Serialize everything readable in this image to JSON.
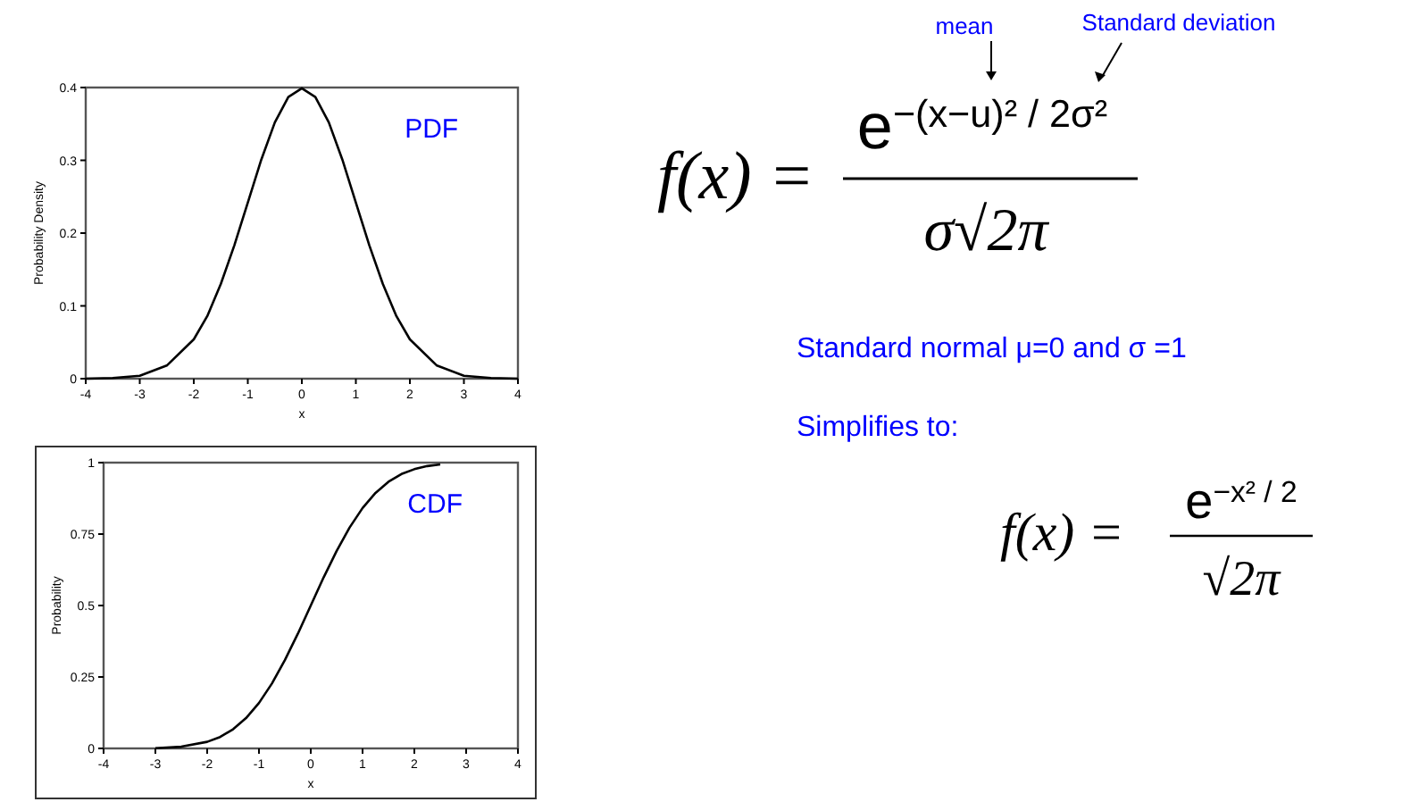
{
  "chart_data": [
    {
      "type": "line",
      "xlabel": "x",
      "ylabel": "Probability Density",
      "annotations": [
        "PDF"
      ],
      "xlim": [
        -4,
        4
      ],
      "xticks": [
        -4,
        -3,
        -2,
        -1,
        0,
        1,
        2,
        3,
        4
      ],
      "ylim": [
        0,
        0.4
      ],
      "yticks": [
        0,
        0.1,
        0.2,
        0.3,
        0.4
      ],
      "series": [
        {
          "color": "#000000",
          "x": [
            -4,
            -3.5,
            -3,
            -2.5,
            -2,
            -1.75,
            -1.5,
            -1.25,
            -1,
            -0.75,
            -0.5,
            -0.25,
            0,
            0.25,
            0.5,
            0.75,
            1,
            1.25,
            1.5,
            1.75,
            2,
            2.5,
            3,
            3.5,
            4
          ],
          "values": [
            0.0,
            0.001,
            0.004,
            0.018,
            0.054,
            0.086,
            0.13,
            0.183,
            0.242,
            0.301,
            0.352,
            0.387,
            0.399,
            0.387,
            0.352,
            0.301,
            0.242,
            0.183,
            0.13,
            0.086,
            0.054,
            0.018,
            0.004,
            0.001,
            0.0
          ]
        }
      ]
    },
    {
      "type": "line",
      "xlabel": "x",
      "ylabel": "Probability",
      "annotations": [
        "CDF"
      ],
      "xlim": [
        -4,
        4
      ],
      "xticks": [
        -4,
        -3,
        -2,
        -1,
        0,
        1,
        2,
        3,
        4
      ],
      "ylim": [
        0,
        1
      ],
      "yticks": [
        0,
        0.25,
        0.5,
        0.75,
        1
      ],
      "series": [
        {
          "color": "#000000",
          "x": [
            -3,
            -2.5,
            -2,
            -1.75,
            -1.5,
            -1.25,
            -1,
            -0.75,
            -0.5,
            -0.25,
            0,
            0.25,
            0.5,
            0.75,
            1,
            1.25,
            1.5,
            1.75,
            2,
            2.25,
            2.5
          ],
          "values": [
            0.001,
            0.006,
            0.023,
            0.04,
            0.067,
            0.106,
            0.159,
            0.227,
            0.309,
            0.401,
            0.5,
            0.599,
            0.691,
            0.773,
            0.841,
            0.894,
            0.933,
            0.96,
            0.977,
            0.988,
            0.994
          ]
        }
      ]
    },
    {
      "type": "other",
      "annotations": [
        "mean",
        "Standard deviation",
        "f(x) =",
        "e$^{−(x−u)² / 2σ²}$",
        "σ√2π",
        "Standard normal μ=0 and σ =1",
        "Simplifies to:",
        "f(x) =",
        "e$^{−x² / 2}$",
        "√2π"
      ]
    }
  ]
}
